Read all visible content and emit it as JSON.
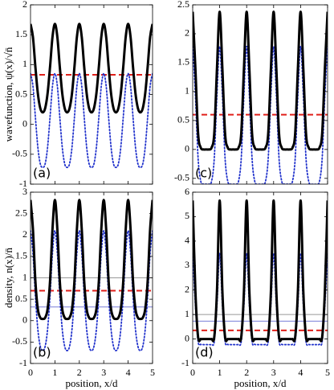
{
  "chart_data": [
    {
      "type": "line",
      "panel_label": "(a)",
      "ylabel": "wavefunction, ψ(x)/√n̄",
      "x": [
        0,
        0.1,
        0.2,
        0.3,
        0.4,
        0.5,
        0.6,
        0.7,
        0.8,
        0.9,
        1,
        1.1,
        1.2,
        1.3,
        1.4,
        1.5,
        1.6,
        1.7,
        1.8,
        1.9,
        2,
        2.1,
        2.2,
        2.3,
        2.4,
        2.5,
        2.6,
        2.7,
        2.8,
        2.9,
        3,
        3.1,
        3.2,
        3.3,
        3.4,
        3.5,
        3.6,
        3.7,
        3.8,
        3.9,
        4,
        4.1,
        4.2,
        4.3,
        4.4,
        4.5,
        4.6,
        4.7,
        4.8,
        4.9,
        5
      ],
      "xlim": [
        0,
        5
      ],
      "xticks": [
        0,
        1,
        2,
        3,
        4,
        5
      ],
      "xtick_labels": false,
      "ylim": [
        -1,
        2
      ],
      "yticks": [
        -1,
        -0.5,
        0,
        0.5,
        1,
        1.5,
        2
      ],
      "series": [
        {
          "color": "#2233cc",
          "style": "dotted",
          "width": 1.8,
          "values": [
            0.85,
            0.64,
            0.12,
            -0.38,
            -0.66,
            -0.72,
            -0.66,
            -0.38,
            0.12,
            0.64,
            0.85,
            0.64,
            0.12,
            -0.38,
            -0.66,
            -0.72,
            -0.66,
            -0.38,
            0.12,
            0.64,
            0.85,
            0.64,
            0.12,
            -0.38,
            -0.66,
            -0.72,
            -0.66,
            -0.38,
            0.12,
            0.64,
            0.85,
            0.64,
            0.12,
            -0.38,
            -0.66,
            -0.72,
            -0.66,
            -0.38,
            0.12,
            0.64,
            0.85,
            0.64,
            0.12,
            -0.38,
            -0.66,
            -0.72,
            -0.66,
            -0.38,
            0.12,
            0.64,
            0.85
          ]
        },
        {
          "color": "#000000",
          "style": "solid",
          "width": 3,
          "values": [
            1.68,
            1.46,
            0.96,
            0.52,
            0.27,
            0.2,
            0.27,
            0.52,
            0.96,
            1.46,
            1.68,
            1.46,
            0.96,
            0.52,
            0.27,
            0.2,
            0.27,
            0.52,
            0.96,
            1.46,
            1.68,
            1.46,
            0.96,
            0.52,
            0.27,
            0.2,
            0.27,
            0.52,
            0.96,
            1.46,
            1.68,
            1.46,
            0.96,
            0.52,
            0.27,
            0.2,
            0.27,
            0.52,
            0.96,
            1.46,
            1.68,
            1.46,
            0.96,
            0.52,
            0.27,
            0.2,
            0.27,
            0.52,
            0.96,
            1.46,
            1.68
          ]
        }
      ],
      "hlines": [
        {
          "value": 0.83,
          "color": "#e0201b",
          "style": "dashed",
          "width": 2
        }
      ]
    },
    {
      "type": "line",
      "panel_label": "(b)",
      "ylabel": "density, n(x)/n̄",
      "xlabel": "position, x/d",
      "x": [
        0,
        0.1,
        0.2,
        0.3,
        0.4,
        0.5,
        0.6,
        0.7,
        0.8,
        0.9,
        1,
        1.1,
        1.2,
        1.3,
        1.4,
        1.5,
        1.6,
        1.7,
        1.8,
        1.9,
        2,
        2.1,
        2.2,
        2.3,
        2.4,
        2.5,
        2.6,
        2.7,
        2.8,
        2.9,
        3,
        3.1,
        3.2,
        3.3,
        3.4,
        3.5,
        3.6,
        3.7,
        3.8,
        3.9,
        4,
        4.1,
        4.2,
        4.3,
        4.4,
        4.5,
        4.6,
        4.7,
        4.8,
        4.9,
        5
      ],
      "xlim": [
        0,
        5
      ],
      "xticks": [
        0,
        1,
        2,
        3,
        4,
        5
      ],
      "xtick_labels": true,
      "ylim": [
        -1,
        3
      ],
      "yticks": [
        -1,
        -0.5,
        0,
        0.5,
        1,
        1.5,
        2,
        2.5,
        3
      ],
      "series": [
        {
          "color": "#2233cc",
          "style": "dotted",
          "width": 1.8,
          "values": [
            2.1,
            1.58,
            0.58,
            -0.2,
            -0.6,
            -0.7,
            -0.6,
            -0.2,
            0.58,
            1.58,
            2.1,
            1.58,
            0.58,
            -0.2,
            -0.6,
            -0.7,
            -0.6,
            -0.2,
            0.58,
            1.58,
            2.1,
            1.58,
            0.58,
            -0.2,
            -0.6,
            -0.7,
            -0.6,
            -0.2,
            0.58,
            1.58,
            2.1,
            1.58,
            0.58,
            -0.2,
            -0.6,
            -0.7,
            -0.6,
            -0.2,
            0.58,
            1.58,
            2.1,
            1.58,
            0.58,
            -0.2,
            -0.6,
            -0.7,
            -0.6,
            -0.2,
            0.58,
            1.58,
            2.1
          ]
        },
        {
          "color": "#000000",
          "style": "solid",
          "width": 3,
          "values": [
            2.82,
            2.13,
            0.92,
            0.27,
            0.07,
            0.04,
            0.07,
            0.27,
            0.92,
            2.13,
            2.82,
            2.13,
            0.92,
            0.27,
            0.07,
            0.04,
            0.07,
            0.27,
            0.92,
            2.13,
            2.82,
            2.13,
            0.92,
            0.27,
            0.07,
            0.04,
            0.07,
            0.27,
            0.92,
            2.13,
            2.82,
            2.13,
            0.92,
            0.27,
            0.07,
            0.04,
            0.07,
            0.27,
            0.92,
            2.13,
            2.82,
            2.13,
            0.92,
            0.27,
            0.07,
            0.04,
            0.07,
            0.27,
            0.92,
            2.13,
            2.82
          ]
        }
      ],
      "hlines": [
        {
          "value": 1,
          "color": "#999999",
          "style": "solid",
          "width": 1
        },
        {
          "value": 0.32,
          "color": "#7a7fd8",
          "style": "solid",
          "width": 1
        },
        {
          "value": 0.7,
          "color": "#e0201b",
          "style": "dashed",
          "width": 2
        }
      ]
    },
    {
      "type": "line",
      "panel_label": "(c)",
      "x": [
        0,
        0.1,
        0.2,
        0.3,
        0.4,
        0.5,
        0.6,
        0.7,
        0.8,
        0.9,
        1,
        1.1,
        1.2,
        1.3,
        1.4,
        1.5,
        1.6,
        1.7,
        1.8,
        1.9,
        2,
        2.1,
        2.2,
        2.3,
        2.4,
        2.5,
        2.6,
        2.7,
        2.8,
        2.9,
        3,
        3.1,
        3.2,
        3.3,
        3.4,
        3.5,
        3.6,
        3.7,
        3.8,
        3.9,
        4,
        4.1,
        4.2,
        4.3,
        4.4,
        4.5,
        4.6,
        4.7,
        4.8,
        4.9,
        5
      ],
      "xlim": [
        0,
        5
      ],
      "xticks": [
        0,
        1,
        2,
        3,
        4,
        5
      ],
      "xtick_labels": false,
      "ylim": [
        -0.6,
        2.5
      ],
      "yticks": [
        -0.5,
        0,
        0.5,
        1,
        1.5,
        2,
        2.5
      ],
      "series": [
        {
          "color": "#2233cc",
          "style": "dotted",
          "width": 1.8,
          "values": [
            1.78,
            0.95,
            -0.15,
            -0.55,
            -0.6,
            -0.6,
            -0.6,
            -0.55,
            -0.15,
            0.95,
            1.78,
            0.95,
            -0.15,
            -0.55,
            -0.6,
            -0.6,
            -0.6,
            -0.55,
            -0.15,
            0.95,
            1.78,
            0.95,
            -0.15,
            -0.55,
            -0.6,
            -0.6,
            -0.6,
            -0.55,
            -0.15,
            0.95,
            1.78,
            0.95,
            -0.15,
            -0.55,
            -0.6,
            -0.6,
            -0.6,
            -0.55,
            -0.15,
            0.95,
            1.78,
            0.95,
            -0.15,
            -0.55,
            -0.6,
            -0.6,
            -0.6,
            -0.55,
            -0.15,
            0.95,
            1.78
          ]
        },
        {
          "color": "#000000",
          "style": "solid",
          "width": 3,
          "values": [
            2.38,
            1.4,
            0.28,
            0.03,
            0,
            0,
            0,
            0.03,
            0.28,
            1.4,
            2.38,
            1.4,
            0.28,
            0.03,
            0,
            0,
            0,
            0.03,
            0.28,
            1.4,
            2.38,
            1.4,
            0.28,
            0.03,
            0,
            0,
            0,
            0.03,
            0.28,
            1.4,
            2.38,
            1.4,
            0.28,
            0.03,
            0,
            0,
            0,
            0.03,
            0.28,
            1.4,
            2.38,
            1.4,
            0.28,
            0.03,
            0,
            0,
            0,
            0.03,
            0.28,
            1.4,
            2.38
          ]
        }
      ],
      "hlines": [
        {
          "value": 0.6,
          "color": "#e0201b",
          "style": "dashed",
          "width": 2
        }
      ]
    },
    {
      "type": "line",
      "panel_label": "(d)",
      "xlabel": "position, x/d",
      "x": [
        0,
        0.1,
        0.2,
        0.3,
        0.4,
        0.5,
        0.6,
        0.7,
        0.8,
        0.9,
        1,
        1.1,
        1.2,
        1.3,
        1.4,
        1.5,
        1.6,
        1.7,
        1.8,
        1.9,
        2,
        2.1,
        2.2,
        2.3,
        2.4,
        2.5,
        2.6,
        2.7,
        2.8,
        2.9,
        3,
        3.1,
        3.2,
        3.3,
        3.4,
        3.5,
        3.6,
        3.7,
        3.8,
        3.9,
        4,
        4.1,
        4.2,
        4.3,
        4.4,
        4.5,
        4.6,
        4.7,
        4.8,
        4.9,
        5
      ],
      "xlim": [
        0,
        5
      ],
      "xticks": [
        0,
        1,
        2,
        3,
        4,
        5
      ],
      "xtick_labels": true,
      "ylim": [
        -1,
        6
      ],
      "yticks": [
        -1,
        0,
        1,
        2,
        3,
        4,
        5,
        6
      ],
      "series": [
        {
          "color": "#2233cc",
          "style": "dotted",
          "width": 1.8,
          "values": [
            3.5,
            1.4,
            -0.1,
            -0.22,
            -0.23,
            -0.23,
            -0.23,
            -0.22,
            -0.1,
            1.4,
            3.5,
            1.4,
            -0.1,
            -0.22,
            -0.23,
            -0.23,
            -0.23,
            -0.22,
            -0.1,
            1.4,
            3.5,
            1.4,
            -0.1,
            -0.22,
            -0.23,
            -0.23,
            -0.23,
            -0.22,
            -0.1,
            1.4,
            3.5,
            1.4,
            -0.1,
            -0.22,
            -0.23,
            -0.23,
            -0.23,
            -0.22,
            -0.1,
            1.4,
            3.5,
            1.4,
            -0.1,
            -0.22,
            -0.23,
            -0.23,
            -0.23,
            -0.22,
            -0.1,
            1.4,
            3.5
          ]
        },
        {
          "color": "#000000",
          "style": "solid",
          "width": 3,
          "values": [
            5.66,
            1.96,
            0.08,
            0,
            0,
            0,
            0,
            0,
            0.08,
            1.96,
            5.66,
            1.96,
            0.08,
            0,
            0,
            0,
            0,
            0,
            0.08,
            1.96,
            5.66,
            1.96,
            0.08,
            0,
            0,
            0,
            0,
            0,
            0.08,
            1.96,
            5.66,
            1.96,
            0.08,
            0,
            0,
            0,
            0,
            0,
            0.08,
            1.96,
            5.66,
            1.96,
            0.08,
            0,
            0,
            0,
            0,
            0,
            0.08,
            1.96,
            5.66
          ]
        }
      ],
      "hlines": [
        {
          "value": 1,
          "color": "#999999",
          "style": "solid",
          "width": 1
        },
        {
          "value": 0.73,
          "color": "#7a7fd8",
          "style": "solid",
          "width": 1
        },
        {
          "value": 0.35,
          "color": "#e0201b",
          "style": "dashed",
          "width": 2
        }
      ]
    }
  ]
}
